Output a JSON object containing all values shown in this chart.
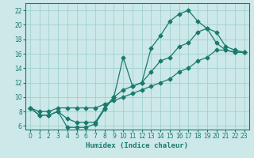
{
  "xlabel": "Humidex (Indice chaleur)",
  "background_color": "#cce8e8",
  "grid_color": "#99cccc",
  "line_color": "#1a7a6e",
  "xlim": [
    -0.5,
    23.5
  ],
  "ylim": [
    5.5,
    23
  ],
  "xticks": [
    0,
    1,
    2,
    3,
    4,
    5,
    6,
    7,
    8,
    9,
    10,
    11,
    12,
    13,
    14,
    15,
    16,
    17,
    18,
    19,
    20,
    21,
    22,
    23
  ],
  "yticks": [
    6,
    8,
    10,
    12,
    14,
    16,
    18,
    20,
    22
  ],
  "curve1_x": [
    0,
    1,
    2,
    3,
    4,
    5,
    6,
    7,
    8,
    9,
    10,
    11,
    12,
    13,
    14,
    15,
    16,
    17,
    18,
    19,
    20,
    21,
    22,
    23
  ],
  "curve1_y": [
    8.5,
    7.5,
    7.5,
    8.0,
    7.0,
    6.5,
    6.5,
    6.5,
    8.5,
    10.0,
    15.5,
    11.5,
    12.0,
    16.8,
    18.5,
    20.5,
    21.5,
    22.0,
    20.5,
    19.5,
    17.5,
    16.5,
    16.2,
    16.2
  ],
  "curve2_x": [
    0,
    1,
    2,
    3,
    4,
    5,
    6,
    7,
    8,
    9,
    10,
    11,
    12,
    13,
    14,
    15,
    16,
    17,
    18,
    19,
    20,
    21,
    22,
    23
  ],
  "curve2_y": [
    8.5,
    7.5,
    7.5,
    8.0,
    5.8,
    5.8,
    5.8,
    6.3,
    8.3,
    10.0,
    11.0,
    11.5,
    12.0,
    13.5,
    15.0,
    15.5,
    17.0,
    17.5,
    19.0,
    19.5,
    19.0,
    17.0,
    16.5,
    16.2
  ],
  "curve3_x": [
    0,
    1,
    2,
    3,
    4,
    5,
    6,
    7,
    8,
    9,
    10,
    11,
    12,
    13,
    14,
    15,
    16,
    17,
    18,
    19,
    20,
    21,
    22,
    23
  ],
  "curve3_y": [
    8.5,
    8.0,
    8.0,
    8.5,
    8.5,
    8.5,
    8.5,
    8.5,
    9.0,
    9.5,
    10.0,
    10.5,
    11.0,
    11.5,
    12.0,
    12.5,
    13.5,
    14.0,
    15.0,
    15.5,
    16.5,
    16.5,
    16.2,
    16.2
  ]
}
